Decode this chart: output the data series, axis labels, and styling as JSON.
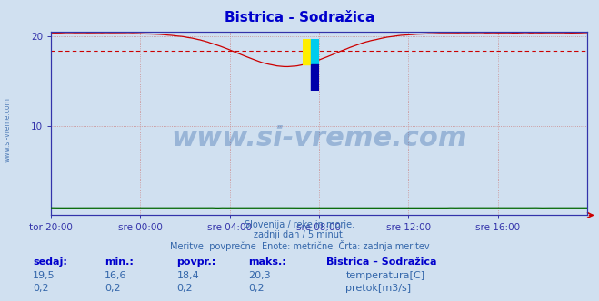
{
  "title": "Bistrica - Sodražica",
  "title_color": "#0000cc",
  "background_color": "#d0e0f0",
  "plot_bg_color": "#d0e0f0",
  "grid_color": "#cc8888",
  "grid_linestyle": ":",
  "tick_color": "#3333aa",
  "ylabel_left_ticks": [
    10,
    20
  ],
  "x_tick_labels": [
    "tor 20:00",
    "sre 00:00",
    "sre 04:00",
    "sre 08:00",
    "sre 12:00",
    "sre 16:00"
  ],
  "x_tick_positions": [
    0,
    72,
    144,
    216,
    288,
    360
  ],
  "total_points": 433,
  "temp_color": "#cc0000",
  "flow_color": "#006600",
  "avg_line_color": "#cc0000",
  "avg_line_style": "--",
  "avg_value": 18.4,
  "ylim": [
    0,
    20.5
  ],
  "watermark_text": "www.si-vreme.com",
  "watermark_color": "#3366aa",
  "watermark_alpha": 0.35,
  "watermark_fontsize": 22,
  "logo_colors": [
    "#ffee00",
    "#00ccee",
    "#0000aa"
  ],
  "subtitle_lines": [
    "Slovenija / reke in morje.",
    "zadnji dan / 5 minut.",
    "Meritve: povprečne  Enote: metrične  Črta: zadnja meritev"
  ],
  "subtitle_color": "#3366aa",
  "legend_title": "Bistrica – Sodražica",
  "legend_color": "#0000cc",
  "stats_headers": [
    "sedaj:",
    "min.:",
    "povpr.:",
    "maks.:"
  ],
  "stats_temp": [
    "19,5",
    "16,6",
    "18,4",
    "20,3"
  ],
  "stats_flow": [
    "0,2",
    "0,2",
    "0,2",
    "0,2"
  ],
  "stats_color": "#3366aa",
  "stats_bold_color": "#0000cc",
  "legend_items": [
    {
      "label": "temperatura[C]",
      "color": "#cc0000"
    },
    {
      "label": "pretok[m3/s]",
      "color": "#00aa00"
    }
  ],
  "left_watermark": "www.si-vreme.com",
  "left_watermark_color": "#3366aa",
  "spine_color": "#3333aa",
  "arrow_color": "#cc0000"
}
